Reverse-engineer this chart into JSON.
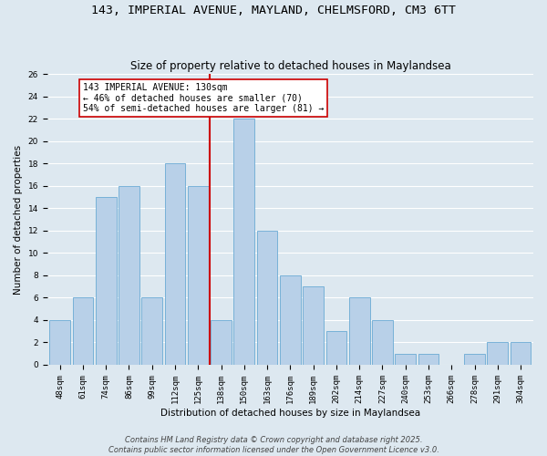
{
  "title1": "143, IMPERIAL AVENUE, MAYLAND, CHELMSFORD, CM3 6TT",
  "title2": "Size of property relative to detached houses in Maylandsea",
  "xlabel": "Distribution of detached houses by size in Maylandsea",
  "ylabel": "Number of detached properties",
  "categories": [
    "48sqm",
    "61sqm",
    "74sqm",
    "86sqm",
    "99sqm",
    "112sqm",
    "125sqm",
    "138sqm",
    "150sqm",
    "163sqm",
    "176sqm",
    "189sqm",
    "202sqm",
    "214sqm",
    "227sqm",
    "240sqm",
    "253sqm",
    "266sqm",
    "278sqm",
    "291sqm",
    "304sqm"
  ],
  "values": [
    4,
    6,
    15,
    16,
    6,
    18,
    16,
    4,
    22,
    12,
    8,
    7,
    3,
    6,
    4,
    1,
    1,
    0,
    1,
    2,
    2
  ],
  "bar_color": "#b8d0e8",
  "bar_edge_color": "#6aaad4",
  "vline_index": 6.5,
  "marker_label_line1": "143 IMPERIAL AVENUE: 130sqm",
  "marker_label_line2": "← 46% of detached houses are smaller (70)",
  "marker_label_line3": "54% of semi-detached houses are larger (81) →",
  "vline_color": "#cc0000",
  "annotation_box_color": "#ffffff",
  "annotation_box_edge": "#cc0000",
  "ylim": [
    0,
    26
  ],
  "yticks": [
    0,
    2,
    4,
    6,
    8,
    10,
    12,
    14,
    16,
    18,
    20,
    22,
    24,
    26
  ],
  "background_color": "#dde8f0",
  "grid_color": "#ffffff",
  "footer": "Contains HM Land Registry data © Crown copyright and database right 2025.\nContains public sector information licensed under the Open Government Licence v3.0.",
  "title_fontsize": 9.5,
  "subtitle_fontsize": 8.5,
  "axis_label_fontsize": 7.5,
  "tick_fontsize": 6.5,
  "annotation_fontsize": 7.0,
  "footer_fontsize": 6.0
}
